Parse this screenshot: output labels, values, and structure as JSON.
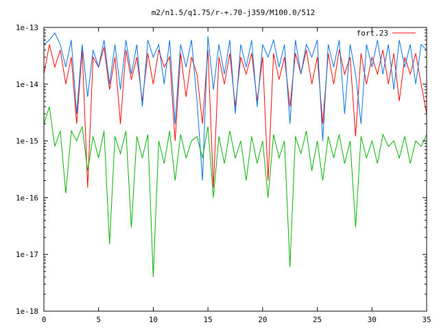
{
  "chart_data": {
    "type": "line",
    "title": "m2/n1.5/q1.75/r-+.70-j359/M100.0/512",
    "xlabel": "",
    "ylabel": "",
    "xlim": [
      0,
      35
    ],
    "ylim": [
      1e-18,
      1e-13
    ],
    "y_scale": "log",
    "grid": false,
    "legend_position": "top-right",
    "x_ticks": [
      0,
      5,
      10,
      15,
      20,
      25,
      30,
      35
    ],
    "x_tick_labels": [
      "0",
      "5",
      "10",
      "15",
      "20",
      "25",
      "30",
      "35"
    ],
    "y_ticks": [
      1e-18,
      1e-17,
      1e-16,
      1e-15,
      1e-14,
      1e-13
    ],
    "y_tick_labels": [
      "1e-18",
      "1e-17",
      "1e-16",
      "1e-15",
      "1e-14",
      "1e-13"
    ],
    "series": [
      {
        "name": "fort.23",
        "color": "#ff0000",
        "x": [
          0.0,
          0.5,
          1.0,
          1.5,
          2.0,
          2.5,
          3.0,
          3.5,
          4.0,
          4.5,
          5.0,
          5.5,
          6.0,
          6.5,
          7.0,
          7.5,
          8.0,
          8.5,
          9.0,
          9.5,
          10.0,
          10.5,
          11.0,
          11.5,
          12.0,
          12.5,
          13.0,
          13.5,
          14.0,
          14.5,
          15.0,
          15.5,
          16.0,
          16.5,
          17.0,
          17.5,
          18.0,
          18.5,
          19.0,
          19.5,
          20.0,
          20.5,
          21.0,
          21.5,
          22.0,
          22.5,
          23.0,
          23.5,
          24.0,
          24.5,
          25.0,
          25.5,
          26.0,
          26.5,
          27.0,
          27.5,
          28.0,
          28.5,
          29.0,
          29.5,
          30.0,
          30.5,
          31.0,
          31.5,
          32.0,
          32.5,
          33.0,
          33.5,
          34.0,
          34.5,
          35.0
        ],
        "y": [
          1.5e-14,
          5e-14,
          2e-14,
          4e-14,
          1e-14,
          3e-14,
          2e-15,
          4e-14,
          1.5e-16,
          3e-14,
          2e-14,
          4.5e-14,
          8e-15,
          3e-14,
          2e-15,
          4e-14,
          1.2e-14,
          3e-14,
          5e-15,
          3.5e-14,
          1e-14,
          4e-14,
          2e-14,
          3e-14,
          1e-15,
          3.5e-14,
          6e-15,
          3e-14,
          1.5e-14,
          2e-15,
          4e-14,
          1.5e-16,
          3e-14,
          1e-14,
          3.5e-14,
          4e-15,
          3e-14,
          1.5e-14,
          3.5e-14,
          5e-15,
          3e-14,
          2e-16,
          3.5e-14,
          1.2e-14,
          3e-14,
          4e-15,
          3.5e-14,
          1.5e-14,
          4e-14,
          1e-14,
          3e-14,
          2e-15,
          3.5e-14,
          1e-14,
          4e-14,
          1.5e-14,
          3e-14,
          1.2e-15,
          3.5e-14,
          1e-14,
          3e-14,
          1.5e-14,
          4e-14,
          1e-14,
          3.5e-14,
          5e-15,
          3e-14,
          1.5e-14,
          3.5e-14,
          1e-14,
          3e-15
        ]
      },
      {
        "color": "#0070e0",
        "x": [
          0.0,
          0.5,
          1.0,
          1.5,
          2.0,
          2.5,
          3.0,
          3.5,
          4.0,
          4.5,
          5.0,
          5.5,
          6.0,
          6.5,
          7.0,
          7.5,
          8.0,
          8.5,
          9.0,
          9.5,
          10.0,
          10.5,
          11.0,
          11.5,
          12.0,
          12.5,
          13.0,
          13.5,
          14.0,
          14.5,
          15.0,
          15.5,
          16.0,
          16.5,
          17.0,
          17.5,
          18.0,
          18.5,
          19.0,
          19.5,
          20.0,
          20.5,
          21.0,
          21.5,
          22.0,
          22.5,
          23.0,
          23.5,
          24.0,
          24.5,
          25.0,
          25.5,
          26.0,
          26.5,
          27.0,
          27.5,
          28.0,
          28.5,
          29.0,
          29.5,
          30.0,
          30.5,
          31.0,
          31.5,
          32.0,
          32.5,
          33.0,
          33.5,
          34.0,
          34.5,
          35.0
        ],
        "y": [
          5e-14,
          6e-14,
          8e-14,
          5e-14,
          2e-14,
          6e-14,
          3e-15,
          5e-14,
          6e-15,
          4e-14,
          2e-14,
          6e-14,
          1e-14,
          5e-14,
          8e-15,
          6e-14,
          1.5e-14,
          5e-14,
          4e-15,
          6e-14,
          3e-14,
          5e-14,
          1e-14,
          6e-14,
          2e-15,
          5e-14,
          2e-14,
          6e-14,
          5e-15,
          2e-16,
          7e-14,
          8e-15,
          5e-14,
          1.5e-14,
          6e-14,
          3e-15,
          5e-14,
          2e-14,
          6e-14,
          4e-15,
          5e-14,
          3e-14,
          6e-14,
          2e-14,
          5e-14,
          2e-15,
          6e-14,
          1.5e-14,
          5e-14,
          3e-14,
          6e-14,
          1e-15,
          5e-14,
          2e-14,
          6e-14,
          3e-15,
          5e-14,
          1.5e-14,
          2e-15,
          5e-14,
          2e-14,
          6e-14,
          1.5e-14,
          5e-14,
          8e-15,
          6e-14,
          2e-14,
          5e-14,
          1e-14,
          5e-14,
          4e-14
        ]
      },
      {
        "color": "#00b000",
        "x": [
          0.0,
          0.5,
          1.0,
          1.5,
          2.0,
          2.5,
          3.0,
          3.5,
          4.0,
          4.5,
          5.0,
          5.5,
          6.0,
          6.5,
          7.0,
          7.5,
          8.0,
          8.5,
          9.0,
          9.5,
          10.0,
          10.5,
          11.0,
          11.5,
          12.0,
          12.5,
          13.0,
          13.5,
          14.0,
          14.5,
          15.0,
          15.5,
          16.0,
          16.5,
          17.0,
          17.5,
          18.0,
          18.5,
          19.0,
          19.5,
          20.0,
          20.5,
          21.0,
          21.5,
          22.0,
          22.5,
          23.0,
          23.5,
          24.0,
          24.5,
          25.0,
          25.5,
          26.0,
          26.5,
          27.0,
          27.5,
          28.0,
          28.5,
          29.0,
          29.5,
          30.0,
          30.5,
          31.0,
          31.5,
          32.0,
          32.5,
          33.0,
          33.5,
          34.0,
          34.5,
          35.0
        ],
        "y": [
          2e-15,
          4e-15,
          8e-16,
          1.5e-15,
          1.2e-16,
          1.5e-15,
          1e-15,
          1.8e-15,
          3e-16,
          1.2e-15,
          5e-16,
          1.5e-15,
          1.5e-17,
          1.2e-15,
          6e-16,
          1.5e-15,
          3e-17,
          1.2e-15,
          5e-16,
          1.3e-15,
          4e-18,
          1e-15,
          4e-16,
          1.5e-15,
          2e-16,
          1.3e-15,
          5e-16,
          1e-15,
          1.2e-15,
          5e-16,
          1.8e-15,
          1e-16,
          1.2e-15,
          4e-16,
          1.5e-15,
          5e-16,
          1e-15,
          2e-16,
          1.2e-15,
          4e-16,
          1e-15,
          1e-16,
          1.3e-15,
          5e-16,
          1e-15,
          6e-18,
          1.2e-15,
          6e-16,
          1.5e-15,
          3e-16,
          1e-15,
          2e-16,
          1.2e-15,
          5e-16,
          1.3e-15,
          4e-16,
          1e-15,
          3e-17,
          1.2e-15,
          5e-16,
          1e-15,
          4e-16,
          1.3e-15,
          8e-16,
          1e-15,
          5e-16,
          1.2e-15,
          4e-16,
          1e-15,
          8e-16,
          1.3e-15
        ]
      }
    ]
  }
}
